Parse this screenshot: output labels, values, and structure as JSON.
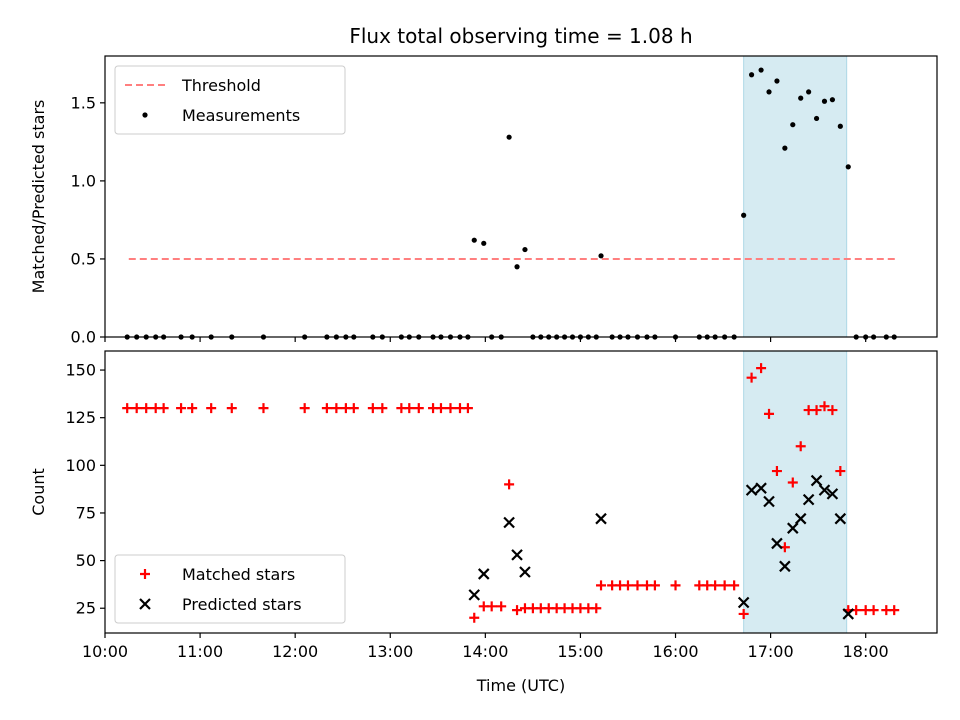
{
  "chart_data": [
    {
      "type": "scatter",
      "title": "Flux total observing time = 1.08 h",
      "xlabel": "",
      "ylabel": "Matched/Predicted stars",
      "xlim": [
        "10:00",
        "18:45"
      ],
      "ylim": [
        0.0,
        1.8
      ],
      "yticks": [
        "0.0",
        "0.5",
        "1.0",
        "1.5"
      ],
      "grid": false,
      "legend_position": "upper-left",
      "shaded_interval": {
        "start": "16:43",
        "end": "17:48",
        "color": "#add8e6"
      },
      "threshold": {
        "name": "Threshold",
        "value": 0.5,
        "x_start": "10:15",
        "x_end": "18:20",
        "color": "#ff7f7f",
        "style": "dashed"
      },
      "series": [
        {
          "name": "Measurements",
          "color": "#000000",
          "marker": "dot",
          "points": [
            [
              "10:14",
              0
            ],
            [
              "10:20",
              0
            ],
            [
              "10:26",
              0
            ],
            [
              "10:32",
              0
            ],
            [
              "10:37",
              0
            ],
            [
              "10:48",
              0
            ],
            [
              "10:55",
              0
            ],
            [
              "11:07",
              0
            ],
            [
              "11:20",
              0
            ],
            [
              "11:40",
              0
            ],
            [
              "12:06",
              0
            ],
            [
              "12:20",
              0
            ],
            [
              "12:26",
              0
            ],
            [
              "12:32",
              0
            ],
            [
              "12:37",
              0
            ],
            [
              "12:49",
              0
            ],
            [
              "12:55",
              0
            ],
            [
              "13:07",
              0
            ],
            [
              "13:12",
              0
            ],
            [
              "13:18",
              0
            ],
            [
              "13:27",
              0
            ],
            [
              "13:32",
              0
            ],
            [
              "13:38",
              0
            ],
            [
              "13:44",
              0
            ],
            [
              "13:49",
              0
            ],
            [
              "13:53",
              0.62
            ],
            [
              "13:59",
              0.6
            ],
            [
              "14:04",
              0
            ],
            [
              "14:10",
              0
            ],
            [
              "14:15",
              1.28
            ],
            [
              "14:20",
              0.45
            ],
            [
              "14:25",
              0.56
            ],
            [
              "14:30",
              0
            ],
            [
              "14:35",
              0
            ],
            [
              "14:40",
              0
            ],
            [
              "14:45",
              0
            ],
            [
              "14:50",
              0
            ],
            [
              "14:55",
              0
            ],
            [
              "15:00",
              0
            ],
            [
              "15:05",
              0
            ],
            [
              "15:10",
              0
            ],
            [
              "15:13",
              0.52
            ],
            [
              "15:20",
              0
            ],
            [
              "15:25",
              0
            ],
            [
              "15:30",
              0
            ],
            [
              "15:36",
              0
            ],
            [
              "15:42",
              0
            ],
            [
              "15:47",
              0
            ],
            [
              "16:00",
              0
            ],
            [
              "16:15",
              0
            ],
            [
              "16:20",
              0
            ],
            [
              "16:25",
              0
            ],
            [
              "16:31",
              0
            ],
            [
              "16:37",
              0
            ],
            [
              "16:43",
              0.78
            ],
            [
              "16:48",
              1.68
            ],
            [
              "16:54",
              1.71
            ],
            [
              "16:59",
              1.57
            ],
            [
              "17:04",
              1.64
            ],
            [
              "17:09",
              1.21
            ],
            [
              "17:14",
              1.36
            ],
            [
              "17:19",
              1.53
            ],
            [
              "17:24",
              1.57
            ],
            [
              "17:29",
              1.4
            ],
            [
              "17:34",
              1.51
            ],
            [
              "17:39",
              1.52
            ],
            [
              "17:44",
              1.35
            ],
            [
              "17:49",
              1.09
            ],
            [
              "17:54",
              0
            ],
            [
              "18:00",
              0
            ],
            [
              "18:05",
              0
            ],
            [
              "18:13",
              0
            ],
            [
              "18:18",
              0
            ]
          ]
        }
      ]
    },
    {
      "type": "scatter",
      "title": "",
      "xlabel": "Time (UTC)",
      "ylabel": "Count",
      "xlim": [
        "10:00",
        "18:45"
      ],
      "ylim": [
        12,
        160
      ],
      "yticks": [
        "25",
        "50",
        "75",
        "100",
        "125",
        "150"
      ],
      "xticks": [
        "10:00",
        "11:00",
        "12:00",
        "13:00",
        "14:00",
        "15:00",
        "16:00",
        "17:00",
        "18:00"
      ],
      "grid": false,
      "legend_position": "lower-left",
      "shaded_interval": {
        "start": "16:43",
        "end": "17:48",
        "color": "#add8e6"
      },
      "series": [
        {
          "name": "Matched stars",
          "color": "#ff0000",
          "marker": "plus",
          "points": [
            [
              "10:14",
              130
            ],
            [
              "10:20",
              130
            ],
            [
              "10:26",
              130
            ],
            [
              "10:32",
              130
            ],
            [
              "10:37",
              130
            ],
            [
              "10:48",
              130
            ],
            [
              "10:55",
              130
            ],
            [
              "11:07",
              130
            ],
            [
              "11:20",
              130
            ],
            [
              "11:40",
              130
            ],
            [
              "12:06",
              130
            ],
            [
              "12:20",
              130
            ],
            [
              "12:26",
              130
            ],
            [
              "12:32",
              130
            ],
            [
              "12:37",
              130
            ],
            [
              "12:49",
              130
            ],
            [
              "12:55",
              130
            ],
            [
              "13:07",
              130
            ],
            [
              "13:12",
              130
            ],
            [
              "13:18",
              130
            ],
            [
              "13:27",
              130
            ],
            [
              "13:32",
              130
            ],
            [
              "13:38",
              130
            ],
            [
              "13:44",
              130
            ],
            [
              "13:49",
              130
            ],
            [
              "13:53",
              20
            ],
            [
              "13:59",
              26
            ],
            [
              "14:04",
              26
            ],
            [
              "14:10",
              26
            ],
            [
              "14:15",
              90
            ],
            [
              "14:20",
              24
            ],
            [
              "14:25",
              25
            ],
            [
              "14:30",
              25
            ],
            [
              "14:35",
              25
            ],
            [
              "14:40",
              25
            ],
            [
              "14:45",
              25
            ],
            [
              "14:50",
              25
            ],
            [
              "14:55",
              25
            ],
            [
              "15:00",
              25
            ],
            [
              "15:05",
              25
            ],
            [
              "15:10",
              25
            ],
            [
              "15:13",
              37
            ],
            [
              "15:20",
              37
            ],
            [
              "15:25",
              37
            ],
            [
              "15:30",
              37
            ],
            [
              "15:36",
              37
            ],
            [
              "15:42",
              37
            ],
            [
              "15:47",
              37
            ],
            [
              "16:00",
              37
            ],
            [
              "16:15",
              37
            ],
            [
              "16:20",
              37
            ],
            [
              "16:25",
              37
            ],
            [
              "16:31",
              37
            ],
            [
              "16:37",
              37
            ],
            [
              "16:43",
              22
            ],
            [
              "16:48",
              146
            ],
            [
              "16:54",
              151
            ],
            [
              "16:59",
              127
            ],
            [
              "17:04",
              97
            ],
            [
              "17:09",
              57
            ],
            [
              "17:14",
              91
            ],
            [
              "17:19",
              110
            ],
            [
              "17:24",
              129
            ],
            [
              "17:29",
              129
            ],
            [
              "17:34",
              131
            ],
            [
              "17:39",
              129
            ],
            [
              "17:44",
              97
            ],
            [
              "17:49",
              24
            ],
            [
              "17:54",
              24
            ],
            [
              "18:00",
              24
            ],
            [
              "18:05",
              24
            ],
            [
              "18:13",
              24
            ],
            [
              "18:18",
              24
            ]
          ]
        },
        {
          "name": "Predicted stars",
          "color": "#000000",
          "marker": "x",
          "points": [
            [
              "13:53",
              32
            ],
            [
              "13:59",
              43
            ],
            [
              "14:15",
              70
            ],
            [
              "14:20",
              53
            ],
            [
              "14:25",
              44
            ],
            [
              "15:13",
              72
            ],
            [
              "16:43",
              28
            ],
            [
              "16:48",
              87
            ],
            [
              "16:54",
              88
            ],
            [
              "16:59",
              81
            ],
            [
              "17:04",
              59
            ],
            [
              "17:09",
              47
            ],
            [
              "17:14",
              67
            ],
            [
              "17:19",
              72
            ],
            [
              "17:24",
              82
            ],
            [
              "17:29",
              92
            ],
            [
              "17:34",
              87
            ],
            [
              "17:39",
              85
            ],
            [
              "17:44",
              72
            ],
            [
              "17:49",
              22
            ]
          ]
        }
      ]
    }
  ]
}
